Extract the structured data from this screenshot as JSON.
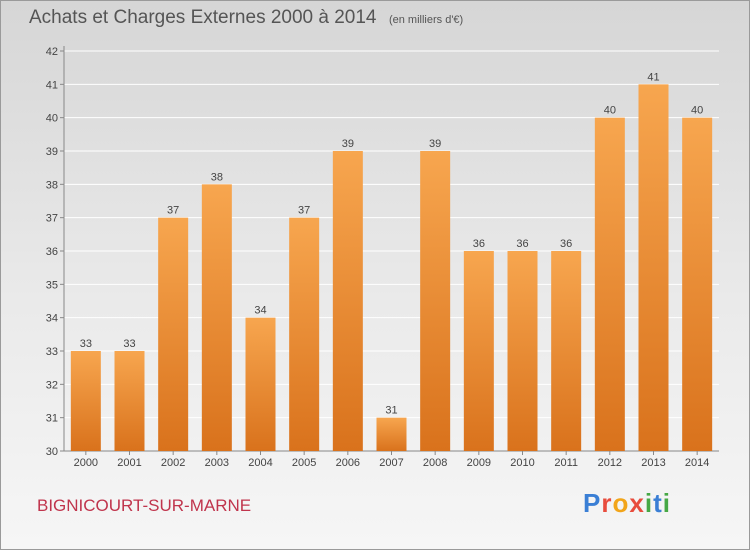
{
  "title": "Achats et Charges Externes 2000 à 2014",
  "unit_note": "(en milliers d'€)",
  "commune": "BIGNICOURT-SUR-MARNE",
  "logo": {
    "letters": [
      "P",
      "r",
      "o",
      "x",
      "i",
      "t",
      "i"
    ],
    "colors": [
      "#3a7fd5",
      "#e84c3d",
      "#f2a51a",
      "#e84c3d",
      "#46a845",
      "#3a7fd5",
      "#46a845"
    ]
  },
  "colors": {
    "bar_top": "#f7a64f",
    "bar_bottom": "#d9721c",
    "grid": "#ffffff",
    "text": "#444444",
    "title": "#555555",
    "commune": "#c0344c"
  },
  "chart_data": {
    "type": "bar",
    "categories": [
      "2000",
      "2001",
      "2002",
      "2003",
      "2004",
      "2005",
      "2006",
      "2007",
      "2008",
      "2009",
      "2010",
      "2011",
      "2012",
      "2013",
      "2014"
    ],
    "values": [
      33,
      33,
      37,
      38,
      34,
      37,
      39,
      31,
      39,
      36,
      36,
      36,
      40,
      41,
      40
    ],
    "ylim": [
      30,
      42
    ],
    "yticks": [
      30,
      31,
      32,
      33,
      34,
      35,
      36,
      37,
      38,
      39,
      40,
      41,
      42
    ],
    "grid": true,
    "data_labels": true
  }
}
